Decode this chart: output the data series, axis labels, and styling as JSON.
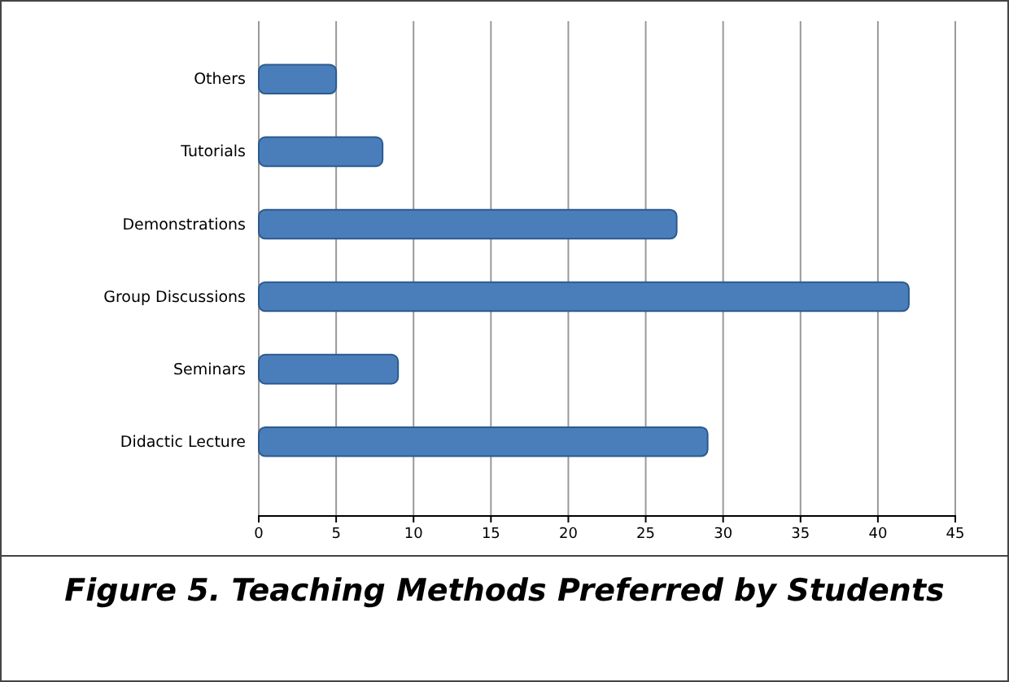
{
  "chart_data": {
    "type": "bar",
    "orientation": "horizontal",
    "title": "Figure 5. Teaching Methods Preferred by Students",
    "categories": [
      "Others",
      "Tutorials",
      "Demonstrations",
      "Group Discussions",
      "Seminars",
      "Didactic Lecture"
    ],
    "values": [
      5,
      8,
      27,
      42,
      9,
      29
    ],
    "color": "#4a7ebb",
    "xlim": [
      0,
      45
    ],
    "xticks": [
      0,
      5,
      10,
      15,
      20,
      25,
      30,
      35,
      40,
      45
    ],
    "grid": "x"
  }
}
